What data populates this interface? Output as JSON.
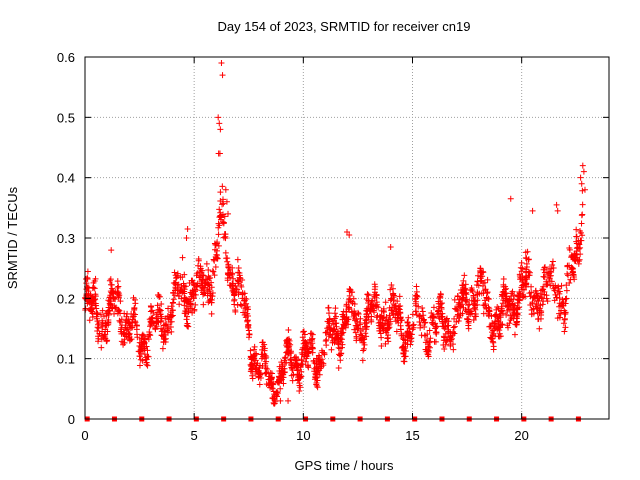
{
  "chart_data": {
    "type": "scatter",
    "title": "Day 154 of 2023, SRMTID for receiver cn19",
    "xlabel": "GPS time / hours",
    "ylabel": "SRMTID / TECUs",
    "xlim": [
      0,
      24
    ],
    "ylim": [
      0,
      0.6
    ],
    "x_ticks": [
      0,
      5,
      10,
      15,
      20
    ],
    "x_tick_labels": [
      "0",
      "5",
      "10",
      "15",
      "20"
    ],
    "y_ticks": [
      0,
      0.1,
      0.2,
      0.3,
      0.4,
      0.5,
      0.6
    ],
    "y_tick_labels": [
      "0",
      "0.1",
      "0.2",
      "0.3",
      "0.4",
      "0.5",
      "0.6"
    ],
    "grid": true,
    "marker": "+",
    "series_color": "#ff0000",
    "zero_markers_x": [
      0.1,
      1.35,
      2.6,
      3.85,
      5.1,
      6.35,
      7.6,
      8.85,
      10.1,
      11.35,
      12.6,
      13.85,
      15.1,
      16.35,
      17.6,
      18.85,
      20.1,
      21.35,
      22.6
    ],
    "profile": [
      [
        0.0,
        0.19
      ],
      [
        0.5,
        0.18
      ],
      [
        1.0,
        0.16
      ],
      [
        1.5,
        0.19
      ],
      [
        2.0,
        0.15
      ],
      [
        2.5,
        0.13
      ],
      [
        3.0,
        0.14
      ],
      [
        3.5,
        0.16
      ],
      [
        4.0,
        0.19
      ],
      [
        4.5,
        0.21
      ],
      [
        5.0,
        0.21
      ],
      [
        5.5,
        0.22
      ],
      [
        6.0,
        0.26
      ],
      [
        6.2,
        0.33
      ],
      [
        6.5,
        0.27
      ],
      [
        7.0,
        0.22
      ],
      [
        7.5,
        0.14
      ],
      [
        8.0,
        0.09
      ],
      [
        8.5,
        0.06
      ],
      [
        9.0,
        0.07
      ],
      [
        9.5,
        0.1
      ],
      [
        10.0,
        0.1
      ],
      [
        10.5,
        0.1
      ],
      [
        11.0,
        0.12
      ],
      [
        11.5,
        0.14
      ],
      [
        12.0,
        0.18
      ],
      [
        12.5,
        0.16
      ],
      [
        13.0,
        0.17
      ],
      [
        13.5,
        0.17
      ],
      [
        14.0,
        0.18
      ],
      [
        14.5,
        0.15
      ],
      [
        15.0,
        0.15
      ],
      [
        15.5,
        0.16
      ],
      [
        16.0,
        0.15
      ],
      [
        16.5,
        0.16
      ],
      [
        17.0,
        0.16
      ],
      [
        17.5,
        0.2
      ],
      [
        18.0,
        0.22
      ],
      [
        18.5,
        0.18
      ],
      [
        19.0,
        0.16
      ],
      [
        19.5,
        0.19
      ],
      [
        20.0,
        0.22
      ],
      [
        20.5,
        0.21
      ],
      [
        21.0,
        0.2
      ],
      [
        21.5,
        0.23
      ],
      [
        22.0,
        0.18
      ],
      [
        22.5,
        0.28
      ],
      [
        22.8,
        0.36
      ]
    ],
    "spread": 0.05,
    "points_per_hour": 95,
    "peak_points": [
      [
        6.1,
        0.5
      ],
      [
        6.15,
        0.49
      ],
      [
        6.2,
        0.48
      ],
      [
        6.12,
        0.44
      ],
      [
        6.18,
        0.44
      ],
      [
        6.25,
        0.59
      ],
      [
        6.3,
        0.57
      ],
      [
        6.45,
        0.38
      ],
      [
        6.5,
        0.36
      ],
      [
        6.55,
        0.34
      ],
      [
        22.7,
        0.4
      ],
      [
        22.8,
        0.42
      ],
      [
        22.85,
        0.41
      ],
      [
        22.75,
        0.39
      ],
      [
        22.9,
        0.38
      ],
      [
        19.5,
        0.365
      ],
      [
        12.0,
        0.31
      ],
      [
        12.1,
        0.305
      ],
      [
        14.0,
        0.285
      ],
      [
        20.5,
        0.345
      ],
      [
        21.6,
        0.355
      ],
      [
        21.65,
        0.345
      ],
      [
        4.7,
        0.315
      ],
      [
        4.65,
        0.3
      ],
      [
        1.2,
        0.28
      ],
      [
        8.95,
        0.03
      ],
      [
        8.6,
        0.035
      ],
      [
        9.3,
        0.03
      ]
    ]
  }
}
